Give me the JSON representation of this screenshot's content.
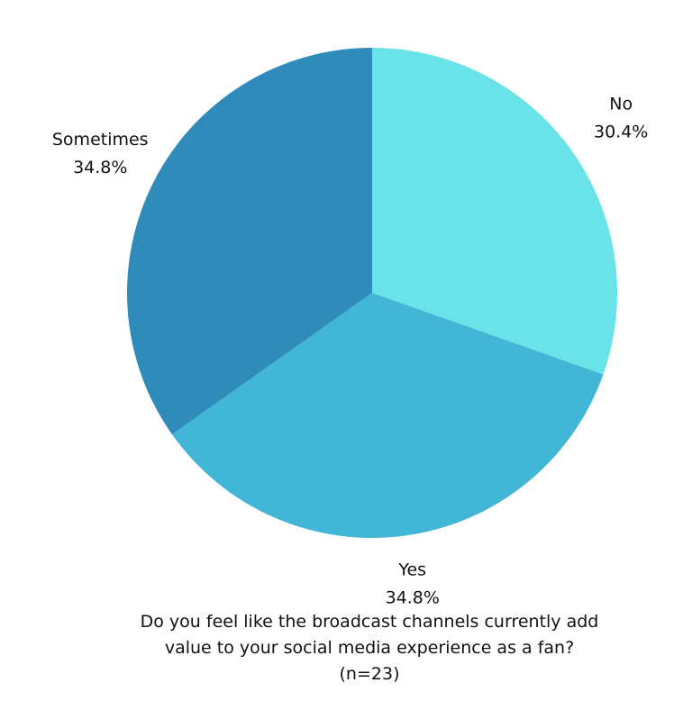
{
  "chart_data": {
    "type": "pie",
    "title": "Do you feel like the broadcast channels currently add value to your social media experience as a fan? (n=23)",
    "categories": [
      "No",
      "Yes",
      "Sometimes"
    ],
    "values": [
      30.4,
      34.8,
      34.8
    ],
    "value_labels": [
      "30.4%",
      "34.8%",
      "34.8%"
    ],
    "colors": [
      "#6ae3e8",
      "#42b6d6",
      "#2e8bba"
    ]
  }
}
